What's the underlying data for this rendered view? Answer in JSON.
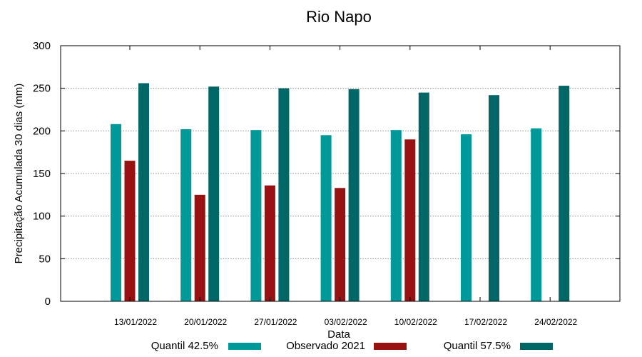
{
  "chart_data": {
    "type": "bar",
    "title": "Rio Napo",
    "xlabel": "Data",
    "ylabel": "Precipitação Acumulada 30 dias (mm)",
    "ylim": [
      0,
      300
    ],
    "yticks": [
      0,
      50,
      100,
      150,
      200,
      250,
      300
    ],
    "grid": true,
    "legend_position": "bottom",
    "categories": [
      "13/01/2022",
      "20/01/2022",
      "27/01/2022",
      "03/02/2022",
      "10/02/2022",
      "17/02/2022",
      "24/02/2022"
    ],
    "series": [
      {
        "name": "Quantil 42.5%",
        "color": "#009999",
        "values": [
          208,
          202,
          201,
          195,
          201,
          196,
          203
        ]
      },
      {
        "name": "Observado 2021",
        "color": "#991111",
        "values": [
          165,
          125,
          136,
          133,
          190,
          null,
          null
        ]
      },
      {
        "name": "Quantil 57.5%",
        "color": "#006666",
        "values": [
          256,
          252,
          250,
          249,
          245,
          242,
          253
        ]
      }
    ]
  }
}
